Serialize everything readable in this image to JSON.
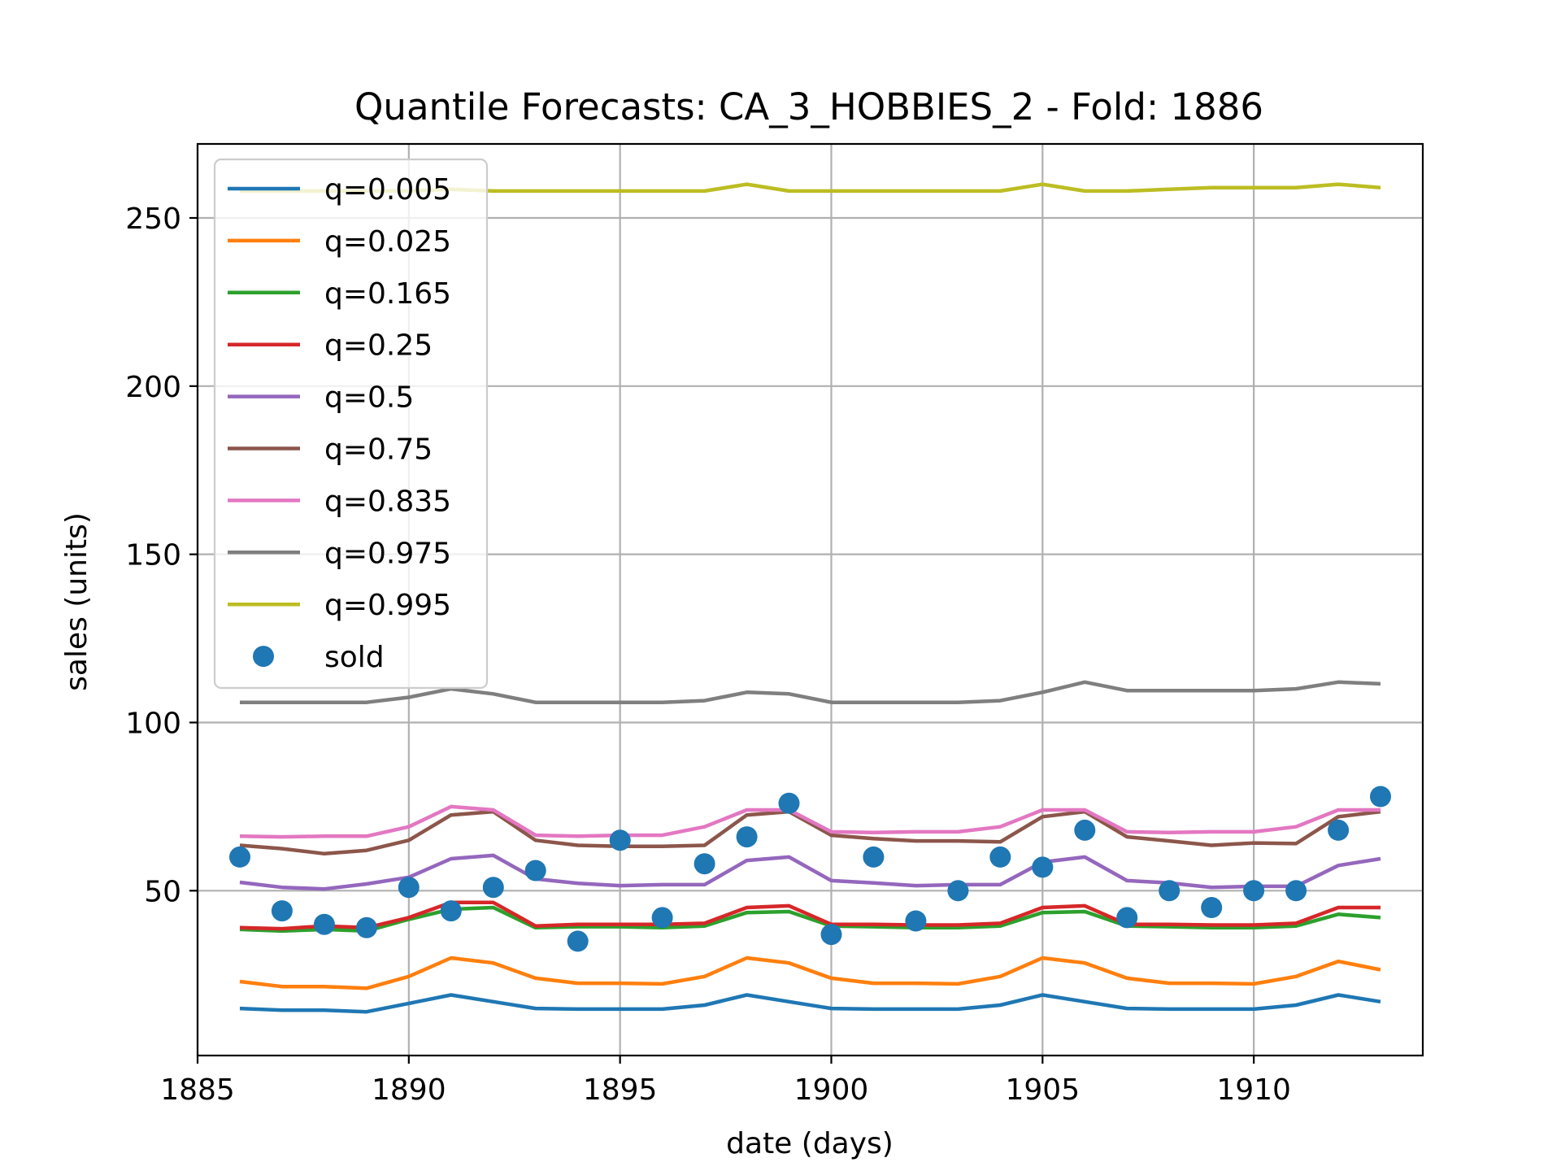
{
  "chart_data": {
    "type": "line",
    "title": "Quantile Forecasts: CA_3_HOBBIES_2 - Fold: 1886",
    "xlabel": "date (days)",
    "ylabel": "sales (units)",
    "xlim": [
      1885,
      1914
    ],
    "ylim": [
      1,
      272
    ],
    "xticks": [
      1885,
      1890,
      1895,
      1900,
      1905,
      1910
    ],
    "yticks": [
      50,
      100,
      150,
      200,
      250
    ],
    "grid": true,
    "legend": "upper-left",
    "x": [
      1886,
      1887,
      1888,
      1889,
      1890,
      1891,
      1892,
      1893,
      1894,
      1895,
      1896,
      1897,
      1898,
      1899,
      1900,
      1901,
      1902,
      1903,
      1904,
      1905,
      1906,
      1907,
      1908,
      1909,
      1910,
      1911,
      1912,
      1913
    ],
    "series": [
      {
        "name": "q=0.005",
        "color": "#1f77b4",
        "values": [
          15,
          14.5,
          14.5,
          14,
          16.5,
          19,
          17,
          15,
          14.8,
          14.8,
          14.8,
          16,
          19,
          17,
          15,
          14.8,
          14.8,
          14.8,
          16,
          19,
          17,
          15,
          14.8,
          14.8,
          14.8,
          16,
          19,
          17
        ]
      },
      {
        "name": "q=0.025",
        "color": "#ff7f0e",
        "values": [
          23,
          21.5,
          21.5,
          21,
          24.5,
          30,
          28.5,
          24,
          22.5,
          22.5,
          22.3,
          24.5,
          30,
          28.5,
          24,
          22.5,
          22.5,
          22.3,
          24.5,
          30,
          28.5,
          24,
          22.5,
          22.5,
          22.3,
          24.5,
          29,
          26.5
        ]
      },
      {
        "name": "q=0.165",
        "color": "#2ca02c",
        "values": [
          38.5,
          38,
          38.5,
          38,
          41.5,
          44.5,
          45,
          39,
          39.3,
          39.3,
          39,
          39.5,
          43.5,
          43.8,
          39.5,
          39.3,
          39,
          39,
          39.5,
          43.5,
          43.8,
          39.5,
          39.3,
          39,
          39,
          39.5,
          43,
          42
        ]
      },
      {
        "name": "q=0.25",
        "color": "#d62728",
        "values": [
          39,
          38.7,
          39.5,
          39,
          42,
          46.5,
          46.5,
          39.5,
          40,
          40,
          40,
          40.3,
          45,
          45.5,
          40,
          40,
          39.8,
          39.8,
          40.3,
          45,
          45.5,
          40,
          40,
          39.8,
          39.8,
          40.3,
          45,
          45
        ]
      },
      {
        "name": "q=0.5",
        "color": "#9467bd",
        "values": [
          52.5,
          51,
          50.5,
          52,
          54,
          59.5,
          60.5,
          53.5,
          52.2,
          51.5,
          51.8,
          51.8,
          59,
          60,
          53,
          52.3,
          51.5,
          51.8,
          51.8,
          58.5,
          60,
          53,
          52.3,
          51,
          51.3,
          51.3,
          57.5,
          59.5
        ]
      },
      {
        "name": "q=0.75",
        "color": "#8c564b",
        "values": [
          63.5,
          62.5,
          61,
          62,
          65,
          72.5,
          73.5,
          65,
          63.5,
          63.2,
          63.2,
          63.5,
          72.5,
          73.5,
          66.5,
          65.5,
          64.8,
          64.8,
          64.5,
          72,
          73.5,
          66,
          64.8,
          63.5,
          64.2,
          64,
          72,
          73.5
        ]
      },
      {
        "name": "q=0.835",
        "color": "#e377c2",
        "values": [
          66.2,
          66,
          66.2,
          66.2,
          69,
          75,
          74,
          66.5,
          66.2,
          66.5,
          66.5,
          69,
          74,
          74,
          67.5,
          67.3,
          67.5,
          67.5,
          69,
          74,
          74,
          67.5,
          67.3,
          67.5,
          67.5,
          69,
          74,
          74
        ]
      },
      {
        "name": "q=0.975",
        "color": "#7f7f7f",
        "values": [
          106,
          106,
          106,
          106,
          107.5,
          110,
          108.5,
          106,
          106,
          106,
          106,
          106.5,
          109,
          108.5,
          106,
          106,
          106,
          106,
          106.5,
          109,
          112,
          109.5,
          109.5,
          109.5,
          109.5,
          110,
          112,
          111.5
        ]
      },
      {
        "name": "q=0.995",
        "color": "#bcbd22",
        "values": [
          258,
          258,
          258,
          258,
          258,
          258.5,
          258,
          258,
          258,
          258,
          258,
          258,
          260,
          258,
          258,
          258,
          258,
          258,
          258,
          260,
          258,
          258,
          258.5,
          259,
          259,
          259,
          260,
          259
        ]
      }
    ],
    "scatter": {
      "name": "sold",
      "color": "#1f77b4",
      "values": [
        60,
        44,
        40,
        39,
        51,
        44,
        51,
        56,
        35,
        65,
        42,
        58,
        66,
        76,
        37,
        60,
        41,
        50,
        60,
        57,
        68,
        42,
        50,
        45,
        50,
        50,
        68,
        78
      ]
    }
  }
}
